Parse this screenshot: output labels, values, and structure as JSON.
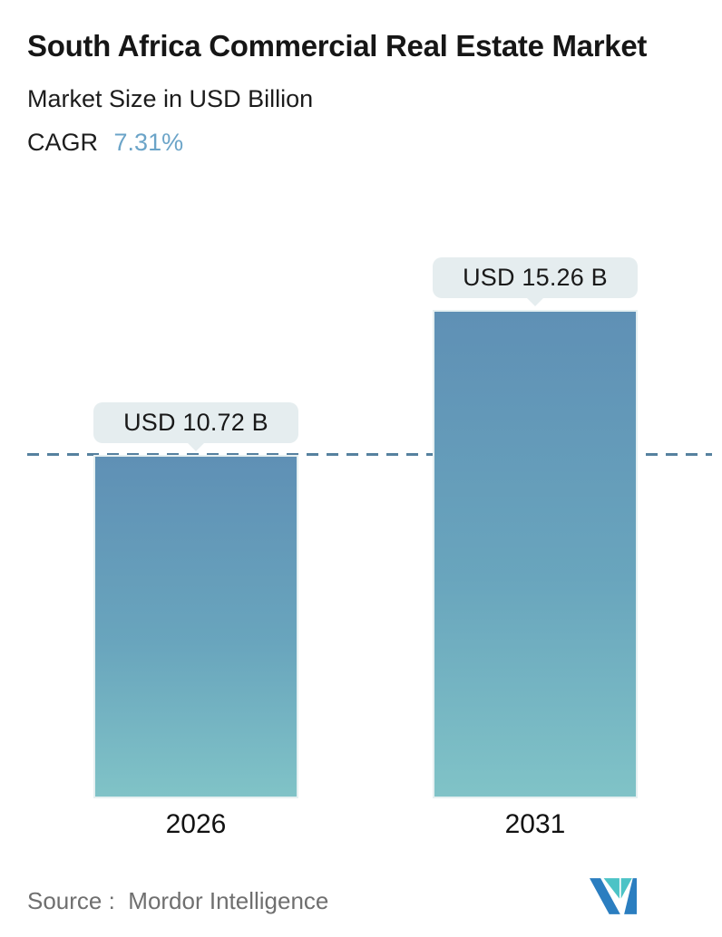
{
  "header": {
    "title": "South Africa Commercial Real Estate Market",
    "subtitle": "Market Size in USD Billion",
    "cagr_label": "CAGR",
    "cagr_value": "7.31%"
  },
  "chart_data": {
    "type": "bar",
    "title": "South Africa Commercial Real Estate Market",
    "xlabel": "",
    "ylabel": "Market Size in USD Billion",
    "categories": [
      "2026",
      "2031"
    ],
    "values": [
      10.72,
      15.26
    ],
    "value_labels": [
      "USD 10.72 B",
      "USD 15.26 B"
    ],
    "ylim": [
      0,
      15.26
    ],
    "grid": false,
    "legend": "none",
    "cagr": "7.31%",
    "reference_line": {
      "style": "dashed",
      "at_value": 10.72,
      "color": "#56819f"
    }
  },
  "footer": {
    "source_label": "Source :",
    "source_value": "Mordor Intelligence"
  },
  "colors": {
    "bar_gradient_top": "#5f90b5",
    "bar_gradient_bottom": "#80c3c7",
    "bar_border": "#e6f0f1",
    "dashed_line": "#56819f",
    "cagr_value_text": "#6ba4c8",
    "tooltip_background": "#e5edef",
    "tooltip_text": "#191919",
    "title_text": "#161616",
    "source_text": "#6f6f6f",
    "logo_blue": "#2b7ec0",
    "logo_teal": "#4cc3c6"
  }
}
